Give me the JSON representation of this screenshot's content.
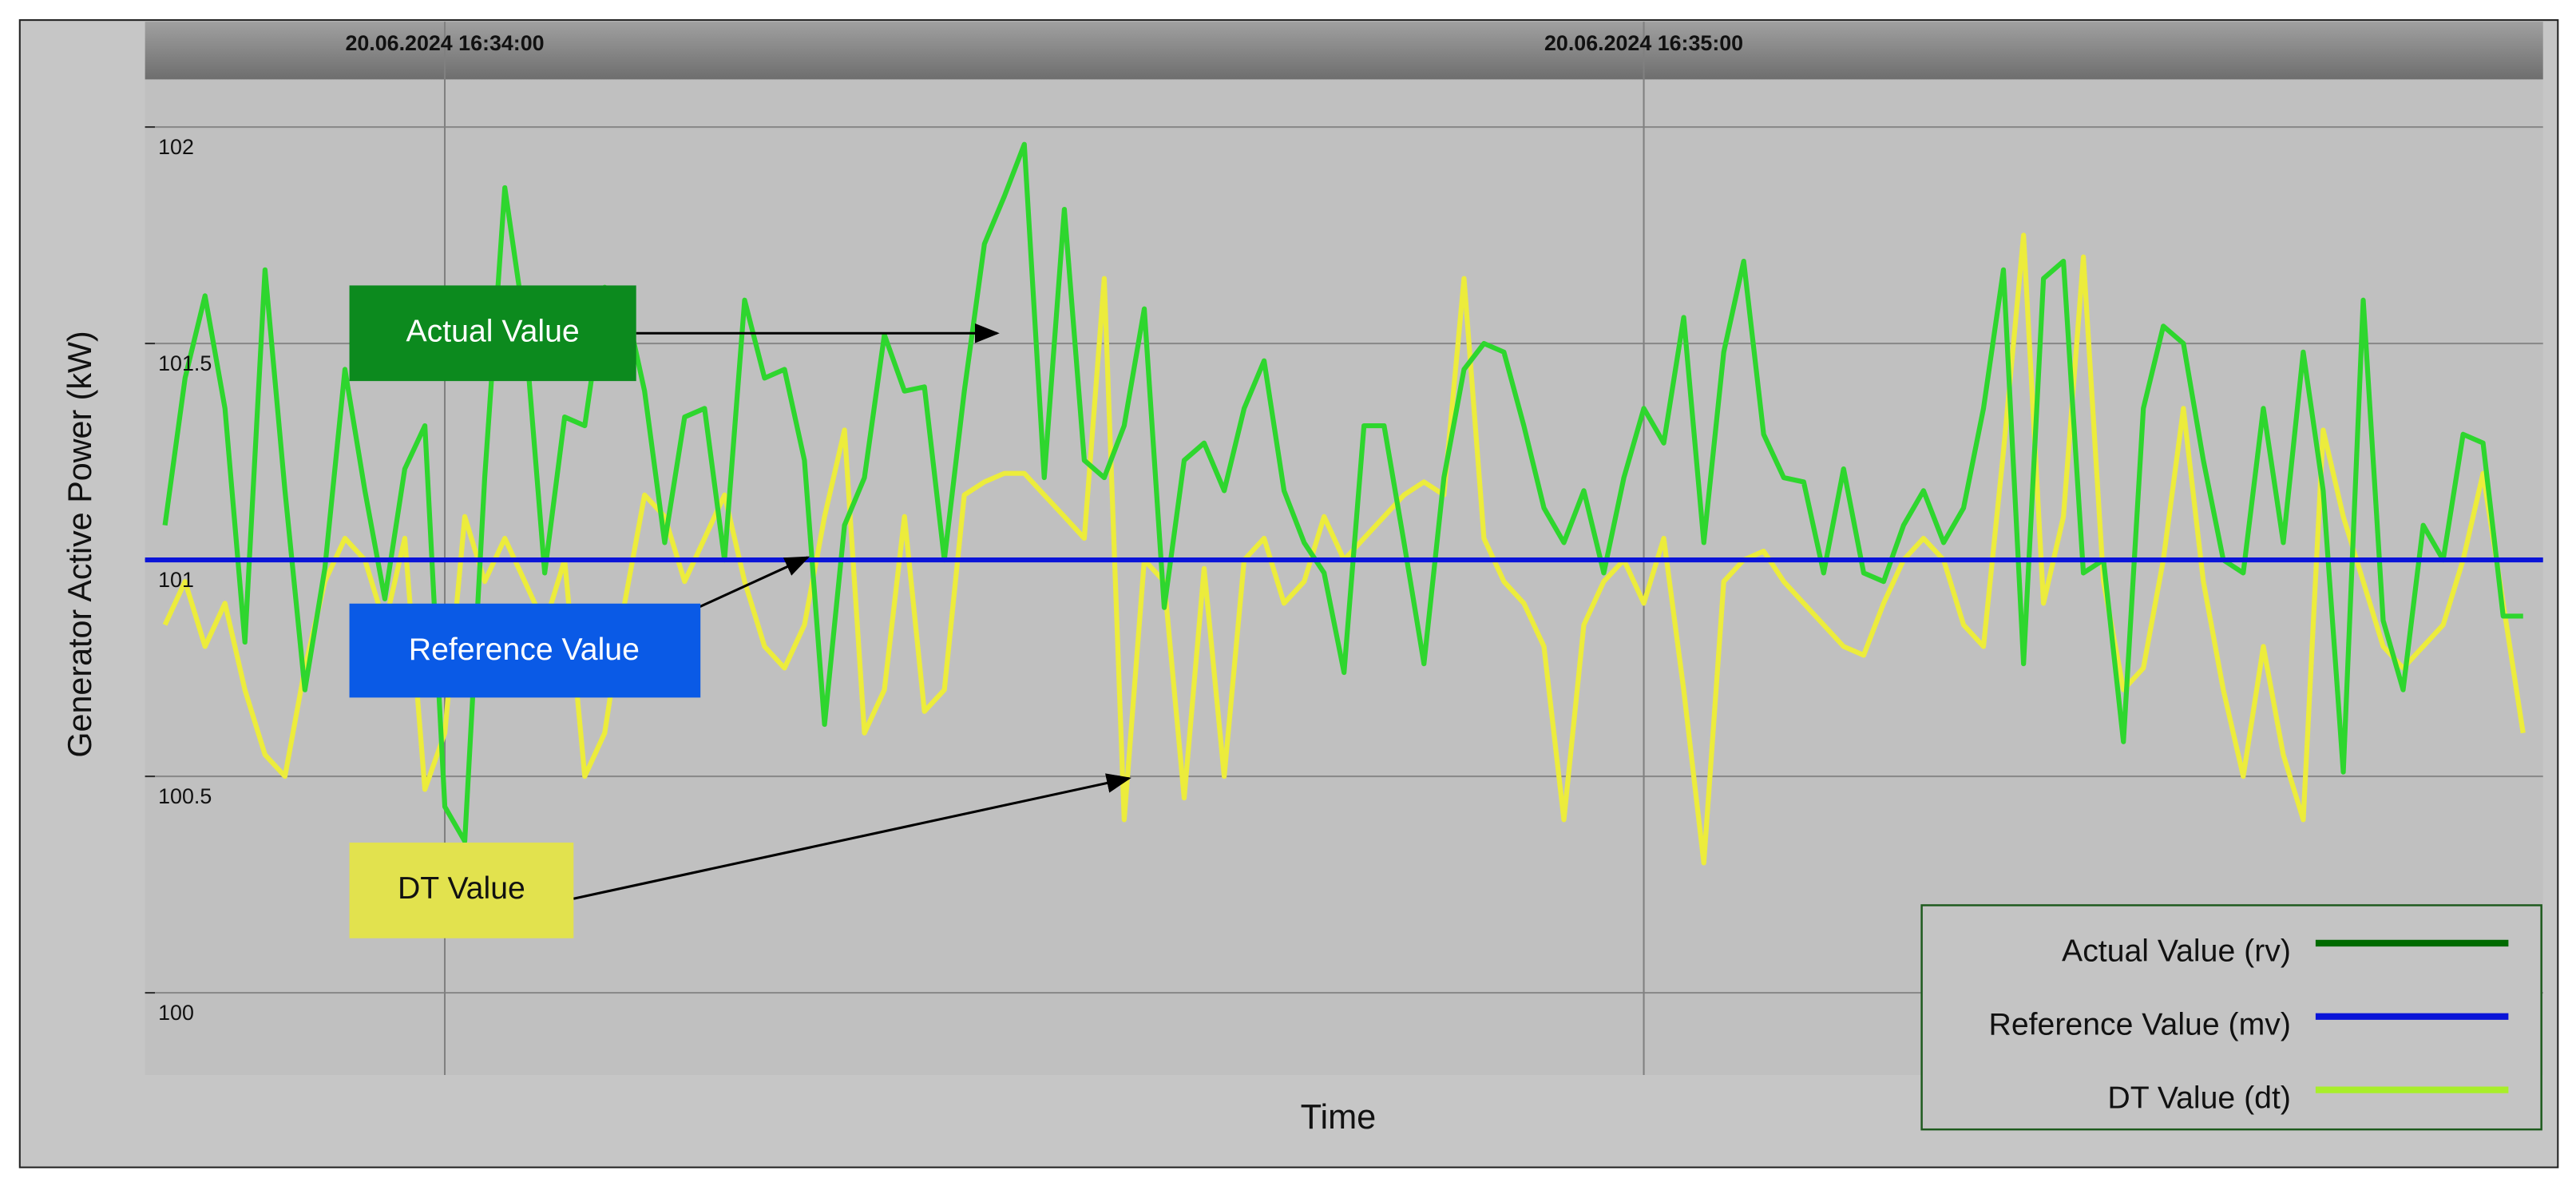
{
  "chart_data": {
    "type": "line",
    "y_label": "Generator Active Power (kW)",
    "x_label": "Time",
    "xlim": [
      "20.06.2024 16:33:45",
      "20.06.2024 16:35:45"
    ],
    "xticks": [
      "20.06.2024 16:34:00",
      "20.06.2024 16:35:00"
    ],
    "ylim": [
      99.81,
      102.11
    ],
    "yticks": [
      100,
      100.5,
      101,
      101.5,
      102
    ],
    "grid": true,
    "legend": "bottom-right",
    "annotations": [
      {
        "text": "Actual Value"
      },
      {
        "text": "Reference Value"
      },
      {
        "text": "DT Value"
      }
    ],
    "x": [
      "20.06.2024 16:33:46",
      "20.06.2024 16:33:47",
      "20.06.2024 16:33:48",
      "20.06.2024 16:33:49",
      "20.06.2024 16:33:50",
      "20.06.2024 16:33:51",
      "20.06.2024 16:33:52",
      "20.06.2024 16:33:53",
      "20.06.2024 16:33:54",
      "20.06.2024 16:33:55",
      "20.06.2024 16:33:56",
      "20.06.2024 16:33:57",
      "20.06.2024 16:33:58",
      "20.06.2024 16:33:59",
      "20.06.2024 16:34:00",
      "20.06.2024 16:34:01",
      "20.06.2024 16:34:02",
      "20.06.2024 16:34:03",
      "20.06.2024 16:34:04",
      "20.06.2024 16:34:05",
      "20.06.2024 16:34:06",
      "20.06.2024 16:34:07",
      "20.06.2024 16:34:08",
      "20.06.2024 16:34:09",
      "20.06.2024 16:34:10",
      "20.06.2024 16:34:11",
      "20.06.2024 16:34:12",
      "20.06.2024 16:34:13",
      "20.06.2024 16:34:14",
      "20.06.2024 16:34:15",
      "20.06.2024 16:34:16",
      "20.06.2024 16:34:17",
      "20.06.2024 16:34:18",
      "20.06.2024 16:34:19",
      "20.06.2024 16:34:20",
      "20.06.2024 16:34:21",
      "20.06.2024 16:34:22",
      "20.06.2024 16:34:23",
      "20.06.2024 16:34:24",
      "20.06.2024 16:34:25",
      "20.06.2024 16:34:26",
      "20.06.2024 16:34:27",
      "20.06.2024 16:34:28",
      "20.06.2024 16:34:29",
      "20.06.2024 16:34:30",
      "20.06.2024 16:34:31",
      "20.06.2024 16:34:32",
      "20.06.2024 16:34:33",
      "20.06.2024 16:34:34",
      "20.06.2024 16:34:35",
      "20.06.2024 16:34:36",
      "20.06.2024 16:34:37",
      "20.06.2024 16:34:38",
      "20.06.2024 16:34:39",
      "20.06.2024 16:34:40",
      "20.06.2024 16:34:41",
      "20.06.2024 16:34:42",
      "20.06.2024 16:34:43",
      "20.06.2024 16:34:44",
      "20.06.2024 16:34:45",
      "20.06.2024 16:34:46",
      "20.06.2024 16:34:47",
      "20.06.2024 16:34:48",
      "20.06.2024 16:34:49",
      "20.06.2024 16:34:50",
      "20.06.2024 16:34:51",
      "20.06.2024 16:34:52",
      "20.06.2024 16:34:53",
      "20.06.2024 16:34:54",
      "20.06.2024 16:34:55",
      "20.06.2024 16:34:56",
      "20.06.2024 16:34:57",
      "20.06.2024 16:34:58",
      "20.06.2024 16:34:59",
      "20.06.2024 16:35:00",
      "20.06.2024 16:35:01",
      "20.06.2024 16:35:02",
      "20.06.2024 16:35:03",
      "20.06.2024 16:35:04",
      "20.06.2024 16:35:05",
      "20.06.2024 16:35:06",
      "20.06.2024 16:35:07",
      "20.06.2024 16:35:08",
      "20.06.2024 16:35:09",
      "20.06.2024 16:35:10",
      "20.06.2024 16:35:11",
      "20.06.2024 16:35:12",
      "20.06.2024 16:35:13",
      "20.06.2024 16:35:14",
      "20.06.2024 16:35:15",
      "20.06.2024 16:35:16",
      "20.06.2024 16:35:17",
      "20.06.2024 16:35:18",
      "20.06.2024 16:35:19",
      "20.06.2024 16:35:20",
      "20.06.2024 16:35:21",
      "20.06.2024 16:35:22",
      "20.06.2024 16:35:23",
      "20.06.2024 16:35:24",
      "20.06.2024 16:35:25",
      "20.06.2024 16:35:26",
      "20.06.2024 16:35:27",
      "20.06.2024 16:35:28",
      "20.06.2024 16:35:29",
      "20.06.2024 16:35:30",
      "20.06.2024 16:35:31",
      "20.06.2024 16:35:32",
      "20.06.2024 16:35:33",
      "20.06.2024 16:35:34",
      "20.06.2024 16:35:35",
      "20.06.2024 16:35:36",
      "20.06.2024 16:35:37",
      "20.06.2024 16:35:38",
      "20.06.2024 16:35:39",
      "20.06.2024 16:35:40",
      "20.06.2024 16:35:41",
      "20.06.2024 16:35:42",
      "20.06.2024 16:35:43",
      "20.06.2024 16:35:44"
    ],
    "series": [
      {
        "name": "Actual Value (rv)",
        "color": "#2ed62e",
        "legend_color": "#006a00",
        "values": [
          101.08,
          101.42,
          101.61,
          101.35,
          100.81,
          101.67,
          101.16,
          100.7,
          100.98,
          101.44,
          101.16,
          100.91,
          101.21,
          101.31,
          100.43,
          100.35,
          101.19,
          101.86,
          101.54,
          100.97,
          101.33,
          101.31,
          101.63,
          101.6,
          101.39,
          101.04,
          101.33,
          101.35,
          101.0,
          101.6,
          101.42,
          101.44,
          101.23,
          100.62,
          101.08,
          101.19,
          101.52,
          101.39,
          101.4,
          101.0,
          101.39,
          101.73,
          101.84,
          101.96,
          101.19,
          101.81,
          101.23,
          101.19,
          101.31,
          101.58,
          100.89,
          101.23,
          101.27,
          101.16,
          101.35,
          101.46,
          101.16,
          101.04,
          100.97,
          100.74,
          101.31,
          101.31,
          101.04,
          100.76,
          101.19,
          101.44,
          101.5,
          101.48,
          101.31,
          101.12,
          101.04,
          101.16,
          100.97,
          101.19,
          101.35,
          101.27,
          101.56,
          101.04,
          101.48,
          101.69,
          101.29,
          101.19,
          101.18,
          100.97,
          101.21,
          100.97,
          100.95,
          101.08,
          101.16,
          101.04,
          101.12,
          101.35,
          101.67,
          100.76,
          101.65,
          101.69,
          100.97,
          101.0,
          100.58,
          101.35,
          101.54,
          101.5,
          101.23,
          101.0,
          100.97,
          101.35,
          101.04,
          101.48,
          101.16,
          100.51,
          101.6,
          100.86,
          100.7,
          101.08,
          101.0,
          101.29,
          101.27,
          100.87,
          100.87
        ]
      },
      {
        "name": "Reference Value (mv)",
        "color": "#0a14d8",
        "legend_color": "#0a14d8",
        "x": [
          "20.06.2024 16:33:45",
          "20.06.2024 16:35:45"
        ],
        "values": [
          101,
          101
        ]
      },
      {
        "name": "DT Value (dt)",
        "color": "#ecec3c",
        "legend_color": "#a8ee2a",
        "values": [
          100.85,
          100.95,
          100.8,
          100.9,
          100.7,
          100.55,
          100.5,
          100.75,
          100.95,
          101.05,
          101.0,
          100.85,
          101.05,
          100.47,
          100.6,
          101.1,
          100.95,
          101.05,
          100.95,
          100.85,
          101.0,
          100.5,
          100.6,
          100.9,
          101.15,
          101.1,
          100.95,
          101.05,
          101.15,
          100.95,
          100.8,
          100.75,
          100.85,
          101.1,
          101.3,
          100.6,
          100.7,
          101.1,
          100.65,
          100.7,
          101.15,
          101.18,
          101.2,
          101.2,
          101.15,
          101.1,
          101.05,
          101.65,
          100.4,
          101.0,
          100.95,
          100.45,
          100.98,
          100.5,
          101.0,
          101.05,
          100.9,
          100.95,
          101.1,
          101.0,
          101.05,
          101.1,
          101.15,
          101.18,
          101.15,
          101.65,
          101.05,
          100.95,
          100.9,
          100.8,
          100.4,
          100.85,
          100.95,
          101.0,
          100.9,
          101.05,
          100.7,
          100.3,
          100.95,
          101.0,
          101.02,
          100.95,
          100.9,
          100.85,
          100.8,
          100.78,
          100.9,
          101.0,
          101.05,
          101.0,
          100.85,
          100.8,
          101.25,
          101.75,
          100.9,
          101.1,
          101.7,
          100.95,
          100.7,
          100.75,
          101.0,
          101.35,
          100.95,
          100.7,
          100.5,
          100.8,
          100.55,
          100.4,
          101.3,
          101.1,
          100.95,
          100.8,
          100.75,
          100.8,
          100.85,
          101.0,
          101.2,
          100.9,
          100.6
        ]
      }
    ]
  }
}
